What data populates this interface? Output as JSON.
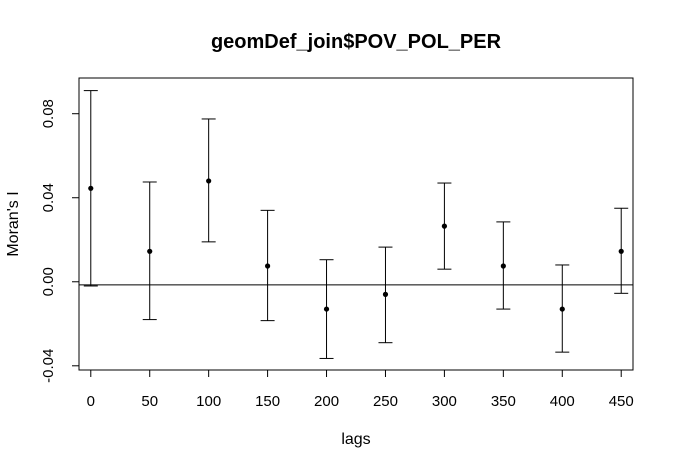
{
  "chart_data": {
    "type": "scatter",
    "title": "geomDef_join$POV_POL_PER",
    "xlabel": "lags",
    "ylabel": "Moran's  I",
    "x_ticks": [
      "0",
      "50",
      "100",
      "150",
      "200",
      "250",
      "300",
      "350",
      "400",
      "450"
    ],
    "y_ticks": [
      "-0.04",
      "0.00",
      "0.04",
      "0.08"
    ],
    "xlim": [
      -10,
      460
    ],
    "ylim": [
      -0.042,
      0.097
    ],
    "reference_line": -0.0015,
    "x": [
      0,
      50,
      100,
      150,
      200,
      250,
      300,
      350,
      400,
      450
    ],
    "estimate": [
      0.0445,
      0.0145,
      0.048,
      0.0075,
      -0.013,
      -0.006,
      0.0265,
      0.0075,
      -0.013,
      0.0145
    ],
    "lower": [
      -0.002,
      -0.018,
      0.019,
      -0.0185,
      -0.0365,
      -0.029,
      0.006,
      -0.013,
      -0.0335,
      -0.0055
    ],
    "upper": [
      0.091,
      0.0475,
      0.0775,
      0.034,
      0.0105,
      0.0165,
      0.047,
      0.0285,
      0.008,
      0.035
    ],
    "grid": false,
    "legend": "none"
  }
}
